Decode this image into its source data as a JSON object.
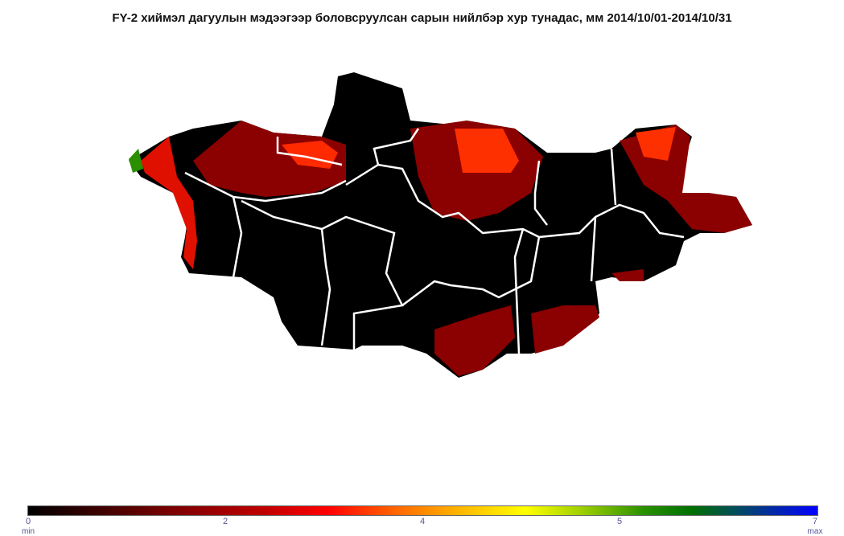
{
  "title": "FY-2  хиймэл дагуулын мэдээгээр боловсруулсан сарын нийлбэр хур тунадас, мм 2014/10/01-2014/10/31",
  "colorbar": {
    "ticks": [
      "0",
      "2",
      "4",
      "5",
      "7"
    ],
    "min_label": "min",
    "max_label": "max",
    "colors": [
      "#000000",
      "#7a0000",
      "#ff0000",
      "#ffb000",
      "#ffff00",
      "#007000",
      "#0000ff"
    ]
  },
  "map": {
    "fill_color": "#000000",
    "boundary_color": "#ffffff",
    "patch_colors": {
      "low": "#8b0000",
      "mid": "#ff2000",
      "high": "#ff6a00",
      "green": "#2a9000"
    }
  }
}
